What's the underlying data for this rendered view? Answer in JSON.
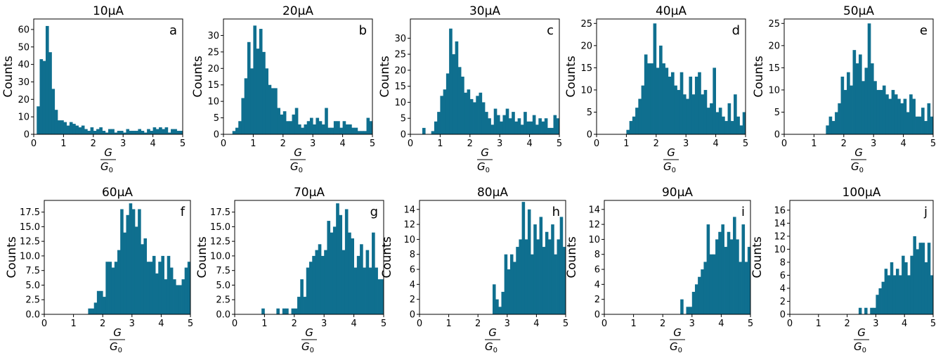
{
  "figure": {
    "bar_color": "#0f6f8f"
  },
  "chart_data": [
    {
      "type": "bar",
      "title": "10µA",
      "panel_label": "a",
      "ylabel": "Counts",
      "xlabel_num": "G",
      "xlabel_den": "G",
      "xlabel_den_sub": "0",
      "xlim": [
        0,
        5
      ],
      "ylim": [
        0,
        66
      ],
      "yticks": [
        0,
        10,
        20,
        30,
        40,
        50,
        60
      ],
      "ytick_labels": [
        "0",
        "10",
        "20",
        "30",
        "40",
        "50",
        "60"
      ],
      "xticks": [
        0,
        1,
        2,
        3,
        4,
        5
      ],
      "xtick_labels": [
        "0",
        "1",
        "2",
        "3",
        "4",
        "5"
      ],
      "bin_width": 0.1,
      "bin_start": 0,
      "values": [
        0,
        16,
        43,
        42,
        62,
        47,
        26,
        14,
        8,
        8,
        7,
        5,
        7,
        6,
        5,
        4,
        5,
        3,
        2,
        4,
        2,
        3,
        4,
        2,
        1,
        3,
        3,
        1,
        2,
        2,
        1,
        3,
        2,
        2,
        2,
        3,
        2,
        1,
        3,
        2,
        4,
        3,
        4,
        3,
        4,
        1,
        3,
        3,
        2,
        2
      ]
    },
    {
      "type": "bar",
      "title": "20µA",
      "panel_label": "b",
      "ylabel": "Counts",
      "xlabel_num": "G",
      "xlabel_den": "G",
      "xlabel_den_sub": "0",
      "xlim": [
        0,
        5
      ],
      "ylim": [
        0,
        35
      ],
      "yticks": [
        0,
        5,
        10,
        15,
        20,
        25,
        30
      ],
      "ytick_labels": [
        "0",
        "5",
        "10",
        "15",
        "20",
        "25",
        "30"
      ],
      "xticks": [
        0,
        1,
        2,
        3,
        4,
        5
      ],
      "xtick_labels": [
        "0",
        "1",
        "2",
        "3",
        "4",
        "5"
      ],
      "bin_width": 0.1,
      "bin_start": 0,
      "values": [
        0,
        0,
        0,
        1,
        2,
        4,
        11,
        17,
        28,
        20,
        33,
        26,
        32,
        25,
        20,
        15,
        14,
        14,
        8,
        6,
        7,
        4,
        4,
        6,
        8,
        3,
        2,
        3,
        4,
        5,
        3,
        5,
        4,
        3,
        8,
        2,
        2,
        4,
        4,
        2,
        4,
        3,
        3,
        2,
        2,
        1,
        1,
        1,
        5,
        4
      ]
    },
    {
      "type": "bar",
      "title": "30µA",
      "panel_label": "c",
      "ylabel": "Counts",
      "xlabel_num": "G",
      "xlabel_den": "G",
      "xlabel_den_sub": "0",
      "xlim": [
        0,
        5
      ],
      "ylim": [
        0,
        36
      ],
      "yticks": [
        0,
        5,
        10,
        15,
        20,
        25,
        30
      ],
      "ytick_labels": [
        "0",
        "5",
        "10",
        "15",
        "20",
        "25",
        "30"
      ],
      "xticks": [
        0,
        1,
        2,
        3,
        4,
        5
      ],
      "xtick_labels": [
        "0",
        "1",
        "2",
        "3",
        "4",
        "5"
      ],
      "bin_width": 0.1,
      "bin_start": 0,
      "values": [
        0,
        0,
        0,
        0,
        2,
        0,
        0,
        1,
        4,
        7,
        12,
        14,
        19,
        33,
        25,
        29,
        21,
        18,
        13,
        14,
        11,
        10,
        12,
        13,
        10,
        7,
        5,
        3,
        8,
        6,
        4,
        6,
        8,
        5,
        7,
        4,
        5,
        3,
        7,
        4,
        4,
        6,
        3,
        5,
        4,
        5,
        2,
        2,
        6,
        5
      ]
    },
    {
      "type": "bar",
      "title": "40µA",
      "panel_label": "d",
      "ylabel": "Counts",
      "xlabel_num": "G",
      "xlabel_den": "G",
      "xlabel_den_sub": "0",
      "xlim": [
        0,
        5
      ],
      "ylim": [
        0,
        26
      ],
      "yticks": [
        0,
        5,
        10,
        15,
        20,
        25
      ],
      "ytick_labels": [
        "0",
        "5",
        "10",
        "15",
        "20",
        "25"
      ],
      "xticks": [
        0,
        1,
        2,
        3,
        4,
        5
      ],
      "xtick_labels": [
        "0",
        "1",
        "2",
        "3",
        "4",
        "5"
      ],
      "bin_width": 0.1,
      "bin_start": 0,
      "values": [
        0,
        0,
        0,
        0,
        0,
        0,
        0,
        0,
        0,
        0,
        1,
        3,
        4,
        6,
        8,
        11,
        18,
        16,
        16,
        25,
        15,
        20,
        16,
        15,
        13,
        14,
        11,
        10,
        14,
        9,
        8,
        13,
        9,
        13,
        14,
        9,
        10,
        6,
        7,
        15,
        5,
        6,
        4,
        3,
        7,
        3,
        9,
        4,
        2,
        5
      ]
    },
    {
      "type": "bar",
      "title": "50µA",
      "panel_label": "e",
      "ylabel": "Counts",
      "xlabel_num": "G",
      "xlabel_den": "G",
      "xlabel_den_sub": "0",
      "xlim": [
        0,
        5
      ],
      "ylim": [
        0,
        26
      ],
      "yticks": [
        0,
        5,
        10,
        15,
        20,
        25
      ],
      "ytick_labels": [
        "0",
        "5",
        "10",
        "15",
        "20",
        "25"
      ],
      "xticks": [
        0,
        1,
        2,
        3,
        4,
        5
      ],
      "xtick_labels": [
        "0",
        "1",
        "2",
        "3",
        "4",
        "5"
      ],
      "bin_width": 0.1,
      "bin_start": 0,
      "values": [
        0,
        0,
        0,
        0,
        0,
        0,
        0,
        0,
        0,
        0,
        0,
        0,
        0,
        0,
        2,
        4,
        3,
        5,
        7,
        13,
        10,
        14,
        11,
        19,
        16,
        18,
        12,
        15,
        25,
        16,
        12,
        10,
        10,
        11,
        9,
        8,
        10,
        9,
        8,
        7,
        8,
        5,
        9,
        8,
        4,
        4,
        6,
        3,
        7,
        4
      ]
    },
    {
      "type": "bar",
      "title": "60µA",
      "panel_label": "f",
      "ylabel": "Counts",
      "xlabel_num": "G",
      "xlabel_den": "G",
      "xlabel_den_sub": "0",
      "xlim": [
        0,
        5
      ],
      "ylim": [
        0,
        19.5
      ],
      "yticks": [
        0,
        2.5,
        5,
        7.5,
        10,
        12.5,
        15,
        17.5
      ],
      "ytick_labels": [
        "0.0",
        "2.5",
        "5.0",
        "7.5",
        "10.0",
        "12.5",
        "15.0",
        "17.5"
      ],
      "xticks": [
        0,
        1,
        2,
        3,
        4,
        5
      ],
      "xtick_labels": [
        "0",
        "1",
        "2",
        "3",
        "4",
        "5"
      ],
      "bin_width": 0.1,
      "bin_start": 0,
      "values": [
        0,
        0,
        0,
        0,
        0,
        0,
        0,
        0,
        0,
        0,
        0,
        0,
        0,
        0,
        0,
        1,
        1,
        2,
        4,
        4,
        3,
        9,
        9,
        8,
        9,
        11,
        18,
        14,
        17,
        19,
        18,
        15,
        18,
        12,
        13,
        9,
        9,
        10,
        7,
        9,
        10,
        6,
        10,
        8,
        6,
        5,
        5,
        6,
        8,
        9
      ]
    },
    {
      "type": "bar",
      "title": "70µA",
      "panel_label": "g",
      "ylabel": "Counts",
      "xlabel_num": "G",
      "xlabel_den": "G",
      "xlabel_den_sub": "0",
      "xlim": [
        0,
        5
      ],
      "ylim": [
        0,
        19.5
      ],
      "yticks": [
        0,
        2.5,
        5,
        7.5,
        10,
        12.5,
        15,
        17.5
      ],
      "ytick_labels": [
        "0.0",
        "2.5",
        "5.0",
        "7.5",
        "10.0",
        "12.5",
        "15.0",
        "17.5"
      ],
      "xticks": [
        0,
        1,
        2,
        3,
        4,
        5
      ],
      "xtick_labels": [
        "0",
        "1",
        "2",
        "3",
        "4",
        "5"
      ],
      "bin_width": 0.1,
      "bin_start": 0,
      "values": [
        0,
        0,
        0,
        0,
        0,
        0,
        0,
        0,
        0,
        1,
        0,
        0,
        0,
        0,
        1,
        0,
        1,
        1,
        0,
        1,
        1,
        3,
        6,
        3,
        8,
        9,
        10,
        11,
        12,
        10,
        11,
        16,
        14,
        15,
        19,
        17,
        11,
        18,
        14,
        13,
        8,
        10,
        12,
        8,
        11,
        8,
        14,
        8,
        6,
        6
      ]
    },
    {
      "type": "bar",
      "title": "80µA",
      "panel_label": "h",
      "ylabel": "Counts",
      "xlabel_num": "G",
      "xlabel_den": "G",
      "xlabel_den_sub": "0",
      "xlim": [
        0,
        5
      ],
      "ylim": [
        0,
        15.2
      ],
      "yticks": [
        0,
        2,
        4,
        6,
        8,
        10,
        12,
        14
      ],
      "ytick_labels": [
        "0",
        "2",
        "4",
        "6",
        "8",
        "10",
        "12",
        "14"
      ],
      "xticks": [
        0,
        1,
        2,
        3,
        4,
        5
      ],
      "xtick_labels": [
        "0",
        "1",
        "2",
        "3",
        "4",
        "5"
      ],
      "bin_width": 0.1,
      "bin_start": 0,
      "values": [
        0,
        0,
        0,
        0,
        0,
        0,
        0,
        0,
        0,
        0,
        0,
        0,
        0,
        0,
        0,
        0,
        0,
        0,
        0,
        0,
        0,
        0,
        0,
        0,
        0,
        4,
        2,
        1,
        3,
        8,
        6,
        8,
        7,
        9,
        10,
        15,
        10,
        14,
        8,
        12,
        10,
        13,
        9,
        11,
        10,
        12,
        8,
        10,
        13,
        9
      ]
    },
    {
      "type": "bar",
      "title": "90µA",
      "panel_label": "i",
      "ylabel": "Counts",
      "xlabel_num": "G",
      "xlabel_den": "G",
      "xlabel_den_sub": "0",
      "xlim": [
        0,
        5
      ],
      "ylim": [
        0,
        15.2
      ],
      "yticks": [
        0,
        2,
        4,
        6,
        8,
        10,
        12,
        14
      ],
      "ytick_labels": [
        "0",
        "2",
        "4",
        "6",
        "8",
        "10",
        "12",
        "14"
      ],
      "xticks": [
        0,
        1,
        2,
        3,
        4,
        5
      ],
      "xtick_labels": [
        "0",
        "1",
        "2",
        "3",
        "4",
        "5"
      ],
      "bin_width": 0.1,
      "bin_start": 0,
      "values": [
        0,
        0,
        0,
        0,
        0,
        0,
        0,
        0,
        0,
        0,
        0,
        0,
        0,
        0,
        0,
        0,
        0,
        0,
        0,
        0,
        0,
        0,
        0,
        0,
        0,
        0,
        2,
        0,
        1,
        1,
        3,
        4,
        5,
        6,
        7,
        12,
        8,
        8,
        10,
        11,
        12,
        9,
        11,
        10,
        13,
        10,
        7,
        12,
        7,
        9
      ]
    },
    {
      "type": "bar",
      "title": "100µA",
      "panel_label": "j",
      "ylabel": "Counts",
      "xlabel_num": "G",
      "xlabel_den": "G",
      "xlabel_den_sub": "0",
      "xlim": [
        0,
        5
      ],
      "ylim": [
        0,
        17.5
      ],
      "yticks": [
        0,
        2,
        4,
        6,
        8,
        10,
        12,
        14,
        16
      ],
      "ytick_labels": [
        "0",
        "2",
        "4",
        "6",
        "8",
        "10",
        "12",
        "14",
        "16"
      ],
      "xticks": [
        0,
        1,
        2,
        3,
        4,
        5
      ],
      "xtick_labels": [
        "0",
        "1",
        "2",
        "3",
        "4",
        "5"
      ],
      "bin_width": 0.1,
      "bin_start": 0,
      "values": [
        0,
        0,
        0,
        0,
        0,
        0,
        0,
        0,
        0,
        0,
        0,
        0,
        0,
        0,
        0,
        0,
        0,
        0,
        0,
        0,
        0,
        0,
        0,
        0,
        1,
        0,
        1,
        0,
        1,
        1,
        3,
        4,
        5,
        7,
        6,
        8,
        6,
        7,
        6,
        9,
        8,
        6,
        9,
        12,
        10,
        11,
        11,
        8,
        11,
        6
      ]
    }
  ]
}
